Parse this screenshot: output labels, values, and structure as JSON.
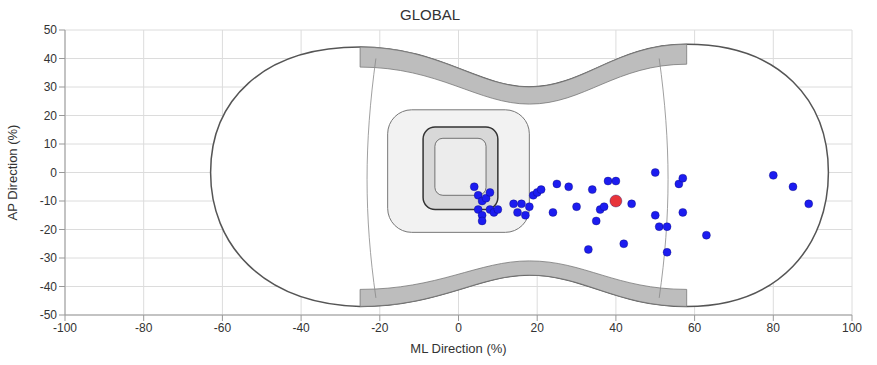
{
  "chart_data": {
    "type": "scatter",
    "title": "GLOBAL",
    "x_label": "ML Direction (%)",
    "y_label": "AP Direction (%)",
    "xlim": [
      -100,
      100
    ],
    "xticks": [
      -100,
      -80,
      -60,
      -40,
      -20,
      0,
      20,
      40,
      60,
      80,
      100
    ],
    "ylim": [
      -50,
      50
    ],
    "yticks": [
      -50,
      -40,
      -30,
      -20,
      -10,
      0,
      10,
      20,
      30,
      40,
      50
    ],
    "grid": true,
    "series": [
      {
        "color": "#1c1cf0",
        "marker": "circle",
        "x": [
          4,
          5,
          6,
          5,
          6,
          6,
          7,
          8,
          8,
          9,
          10,
          14,
          15,
          16,
          17,
          18,
          19,
          20,
          21,
          24,
          25,
          28,
          30,
          33,
          34,
          35,
          36,
          37,
          38,
          40,
          42,
          44,
          50,
          50,
          51,
          53,
          53,
          56,
          57,
          57,
          63,
          80,
          85,
          89
        ],
        "y": [
          -5,
          -8,
          -10,
          -13,
          -15,
          -17,
          -9,
          -7,
          -13,
          -14,
          -13,
          -11,
          -14,
          -11,
          -15,
          -12,
          -8,
          -7,
          -6,
          -14,
          -4,
          -5,
          -12,
          -27,
          -6,
          -17,
          -13,
          -12,
          -3,
          -3,
          -25,
          -11,
          0,
          -15,
          -19,
          -19,
          -28,
          -4,
          -2,
          -14,
          -22,
          -1,
          -5,
          -11
        ]
      },
      {
        "color": "#e8343a",
        "marker": "circle",
        "x": [
          40
        ],
        "y": [
          -10
        ]
      }
    ]
  }
}
